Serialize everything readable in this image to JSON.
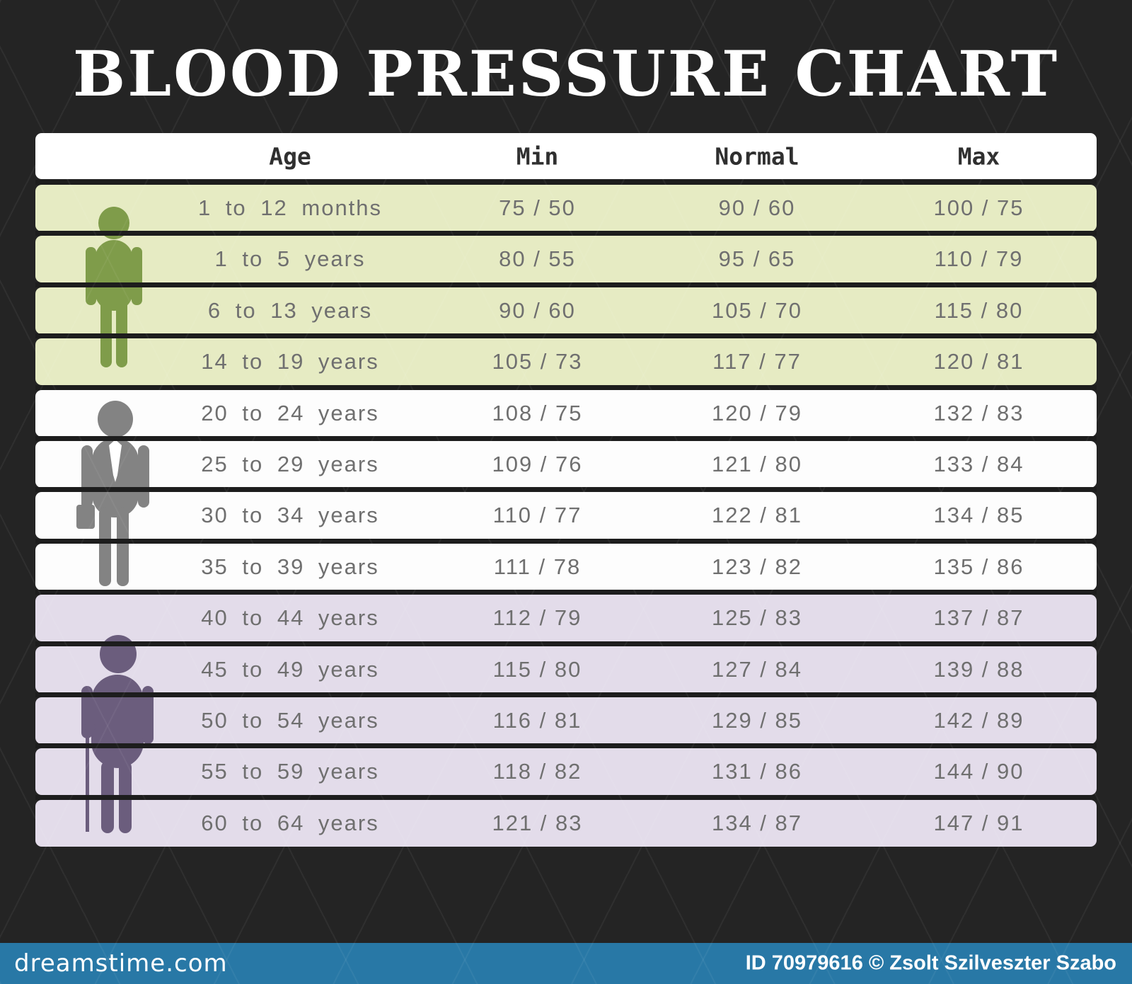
{
  "title": "BLOOD PRESSURE CHART",
  "table": {
    "headers": [
      "Age",
      "Min",
      "Normal",
      "Max"
    ],
    "column_centers_pct": {
      "age": 24,
      "min": 47.3,
      "normal": 68,
      "max": 88.9
    }
  },
  "colors": {
    "background": "#242424",
    "divider": "#1d1d1d",
    "title_text": "#ffffff",
    "header_row": "#ffffff",
    "text_header": "#2f2f2f",
    "text_row": "#6f6f6f",
    "row_child": "#e6ebc3",
    "row_adult": "#fdfdfd",
    "row_senior": "#e3dcea",
    "icon_child": "#7f9c4a",
    "icon_adult": "#838383",
    "icon_senior": "#6b5d7d",
    "tie": "#ffffff",
    "footer_bar": "#2878a6",
    "footer_text": "#ffffff"
  },
  "icons": [
    {
      "name": "child-icon",
      "group": "child"
    },
    {
      "name": "businessman-icon",
      "group": "adult"
    },
    {
      "name": "elderly-with-cane-icon",
      "group": "senior"
    }
  ],
  "footer": {
    "brand": "dreamstime.com",
    "credit": "ID 70979616 © Zsolt Szilveszter Szabo"
  },
  "chart_data": {
    "type": "table",
    "title": "BLOOD PRESSURE CHART",
    "columns": [
      "Age",
      "Min",
      "Normal",
      "Max"
    ],
    "rows": [
      {
        "age": "1 to 12 months",
        "min": "75 / 50",
        "normal": "90 / 60",
        "max": "100 / 75",
        "group": "child"
      },
      {
        "age": "1 to 5 years",
        "min": "80 / 55",
        "normal": "95 / 65",
        "max": "110 / 79",
        "group": "child"
      },
      {
        "age": "6 to 13 years",
        "min": "90 / 60",
        "normal": "105 / 70",
        "max": "115 / 80",
        "group": "child"
      },
      {
        "age": "14 to 19 years",
        "min": "105 / 73",
        "normal": "117 / 77",
        "max": "120 / 81",
        "group": "child"
      },
      {
        "age": "20 to 24 years",
        "min": "108 / 75",
        "normal": "120 / 79",
        "max": "132 / 83",
        "group": "adult"
      },
      {
        "age": "25 to 29 years",
        "min": "109 / 76",
        "normal": "121 / 80",
        "max": "133 / 84",
        "group": "adult"
      },
      {
        "age": "30 to 34 years",
        "min": "110 / 77",
        "normal": "122 / 81",
        "max": "134 / 85",
        "group": "adult"
      },
      {
        "age": "35 to 39 years",
        "min": "111 / 78",
        "normal": "123 / 82",
        "max": "135 / 86",
        "group": "adult"
      },
      {
        "age": "40 to 44 years",
        "min": "112 / 79",
        "normal": "125 / 83",
        "max": "137 / 87",
        "group": "senior"
      },
      {
        "age": "45 to 49 years",
        "min": "115 / 80",
        "normal": "127 / 84",
        "max": "139 / 88",
        "group": "senior"
      },
      {
        "age": "50 to 54 years",
        "min": "116 / 81",
        "normal": "129 / 85",
        "max": "142 / 89",
        "group": "senior"
      },
      {
        "age": "55 to 59 years",
        "min": "118 / 82",
        "normal": "131 / 86",
        "max": "144 / 90",
        "group": "senior"
      },
      {
        "age": "60 to 64 years",
        "min": "121 / 83",
        "normal": "134 / 87",
        "max": "147 / 91",
        "group": "senior"
      }
    ]
  }
}
